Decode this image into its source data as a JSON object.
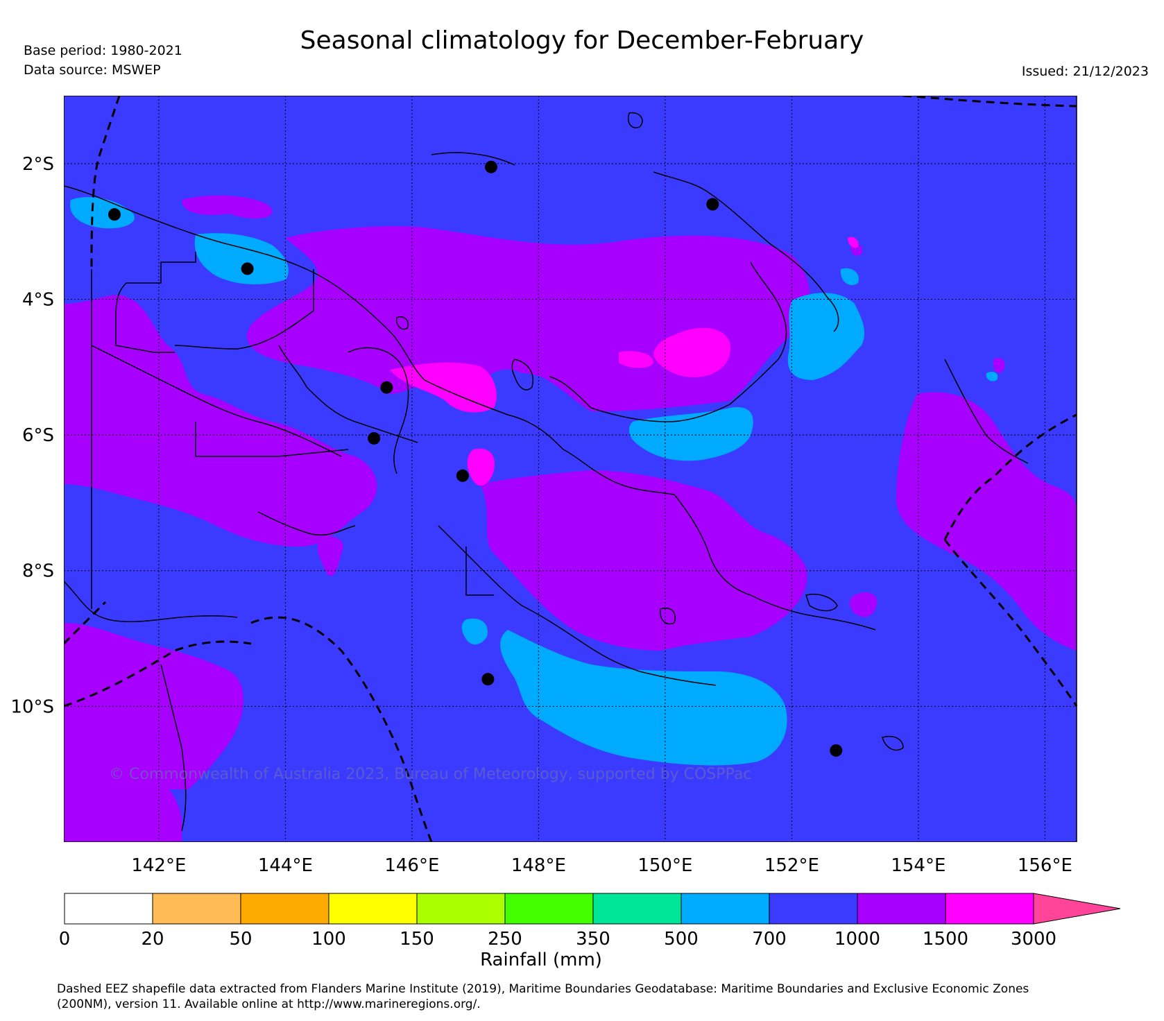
{
  "header": {
    "title": "Seasonal climatology for December-February",
    "base_period": "Base period: 1980-2021",
    "data_source": "Data source: MSWEP",
    "issued": "Issued: 21/12/2023"
  },
  "map": {
    "watermark": "© Commonwealth of Australia 2023, Bureau of Meteorology, supported by COSPPac",
    "lon_range": [
      140.5,
      156.5
    ],
    "lat_range": [
      -12.0,
      -1.0
    ],
    "lon_ticks": [
      {
        "value": 142,
        "label": "142°E"
      },
      {
        "value": 144,
        "label": "144°E"
      },
      {
        "value": 146,
        "label": "146°E"
      },
      {
        "value": 148,
        "label": "148°E"
      },
      {
        "value": 150,
        "label": "150°E"
      },
      {
        "value": 152,
        "label": "152°E"
      },
      {
        "value": 154,
        "label": "154°E"
      },
      {
        "value": 156,
        "label": "156°E"
      }
    ],
    "lat_ticks": [
      {
        "value": -2,
        "label": "2°S"
      },
      {
        "value": -4,
        "label": "4°S"
      },
      {
        "value": -6,
        "label": "6°S"
      },
      {
        "value": -8,
        "label": "8°S"
      },
      {
        "value": -10,
        "label": "10°S"
      }
    ],
    "stations": [
      {
        "lon": 141.3,
        "lat": -2.75
      },
      {
        "lon": 143.4,
        "lat": -3.55
      },
      {
        "lon": 147.25,
        "lat": -2.05
      },
      {
        "lon": 150.75,
        "lat": -2.6
      },
      {
        "lon": 145.6,
        "lat": -5.3
      },
      {
        "lon": 145.4,
        "lat": -6.05
      },
      {
        "lon": 146.8,
        "lat": -6.6
      },
      {
        "lon": 147.2,
        "lat": -9.6
      },
      {
        "lon": 152.7,
        "lat": -10.65
      }
    ],
    "colors": {
      "background": "#3b3bff",
      "water_edge": "#000000"
    }
  },
  "colorbar": {
    "label": "Rainfall (mm)",
    "ticks": [
      "0",
      "20",
      "50",
      "100",
      "150",
      "250",
      "350",
      "500",
      "700",
      "1000",
      "1500",
      "3000"
    ],
    "colors": [
      "#ffffff",
      "#ffbb55",
      "#ffaa00",
      "#ffff00",
      "#aaff00",
      "#44ff00",
      "#00e699",
      "#00aaff",
      "#3b3bff",
      "#a800ff",
      "#ff00ff"
    ],
    "extend_color": "#ff4499"
  },
  "footer": {
    "line1": "Dashed EEZ shapefile data extracted from Flanders Marine Institute (2019), Maritime Boundaries Geodatabase: Maritime Boundaries and Exclusive Economic Zones",
    "line2": "(200NM), version 11. Available online at http://www.marineregions.org/."
  }
}
